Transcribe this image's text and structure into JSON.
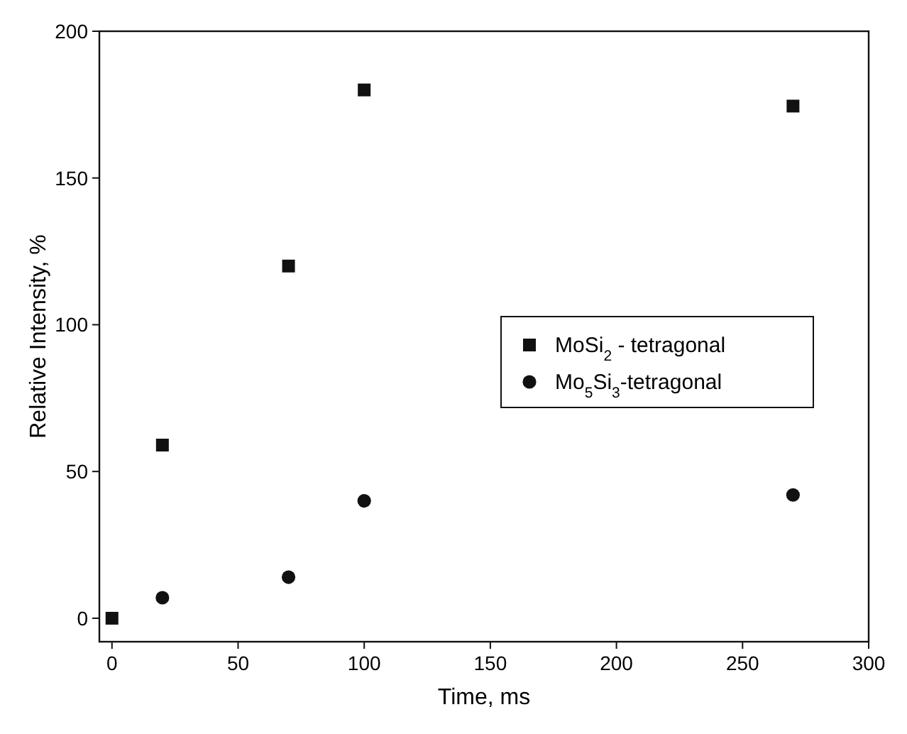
{
  "chart_data": {
    "type": "scatter",
    "xlabel": "Time, ms",
    "ylabel": "Relative Intensity, %",
    "xlim": [
      -5,
      300
    ],
    "ylim": [
      -8,
      200
    ],
    "xticks": [
      0,
      50,
      100,
      150,
      200,
      250,
      300
    ],
    "yticks": [
      0,
      50,
      100,
      150,
      200
    ],
    "legend": "right",
    "grid": false,
    "series": [
      {
        "name": "MoSi$_{2}$ - tetragonal",
        "color": "#111111",
        "marker": "square",
        "x": [
          0,
          20,
          70,
          100,
          270
        ],
        "values": [
          0,
          59,
          120,
          180,
          174.5
        ]
      },
      {
        "name": "Mo$_{5}$Si$_{3}$-tetragonal",
        "color": "#111111",
        "marker": "circle",
        "x": [
          20,
          70,
          100,
          270
        ],
        "values": [
          7,
          14,
          40,
          42
        ]
      }
    ]
  }
}
